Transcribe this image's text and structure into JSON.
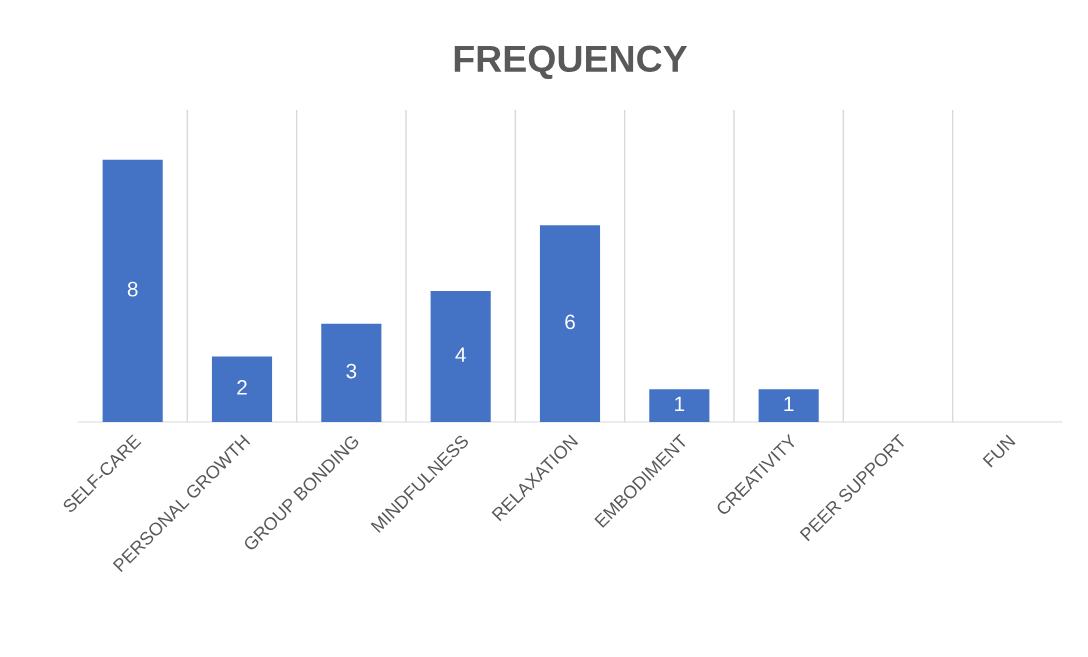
{
  "chart_data": {
    "type": "bar",
    "title": "FREQUENCY",
    "categories": [
      "SELF-CARE",
      "PERSONAL GROWTH",
      "GROUP BONDING",
      "MINDFULNESS",
      "RELAXATION",
      "EMBODIMENT",
      "CREATIVITY",
      "PEER SUPPORT",
      "FUN"
    ],
    "values": [
      8,
      2,
      3,
      4,
      6,
      1,
      1,
      0,
      0
    ],
    "value_labels": [
      "8",
      "2",
      "3",
      "4",
      "6",
      "1",
      "1",
      null,
      null
    ],
    "color": "#4472c4",
    "grid": "x",
    "legend": false
  }
}
